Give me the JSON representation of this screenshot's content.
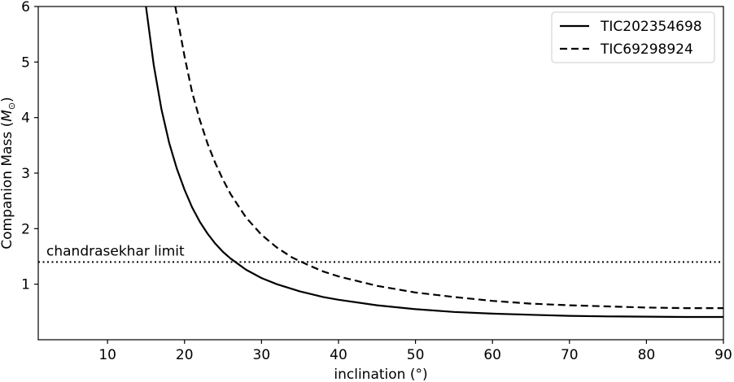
{
  "chart_data": {
    "type": "line",
    "xlabel": "inclination (°)",
    "ylabel": "Companion Mass (",
    "ylabel_symbol": "M",
    "ylabel_subscript": "⊙",
    "ylabel_close": ")",
    "xlim": [
      1,
      90
    ],
    "ylim": [
      0,
      6
    ],
    "xticks": [
      10,
      20,
      30,
      40,
      50,
      60,
      70,
      80,
      90
    ],
    "yticks": [
      1,
      2,
      3,
      4,
      5,
      6
    ],
    "grid": false,
    "legend_position": "top-right",
    "series": [
      {
        "name": "TIC202354698",
        "style": "solid",
        "color": "#000000",
        "x": [
          15,
          16,
          17,
          18,
          19,
          20,
          21,
          22,
          23,
          24,
          25,
          26,
          28,
          30,
          32,
          35,
          38,
          40,
          45,
          50,
          55,
          60,
          65,
          70,
          75,
          80,
          85,
          90
        ],
        "y": [
          6.0,
          4.95,
          4.15,
          3.55,
          3.08,
          2.7,
          2.38,
          2.12,
          1.91,
          1.73,
          1.58,
          1.46,
          1.26,
          1.11,
          1.0,
          0.87,
          0.77,
          0.72,
          0.62,
          0.55,
          0.5,
          0.47,
          0.45,
          0.43,
          0.42,
          0.415,
          0.41,
          0.41
        ]
      },
      {
        "name": "TIC69298924",
        "style": "dashed",
        "color": "#000000",
        "x": [
          18.8,
          20,
          21,
          22,
          23,
          24,
          25,
          26,
          28,
          30,
          32,
          34,
          36,
          38,
          40,
          45,
          50,
          55,
          60,
          65,
          70,
          75,
          80,
          85,
          90
        ],
        "y": [
          6.0,
          5.1,
          4.45,
          3.95,
          3.53,
          3.18,
          2.88,
          2.62,
          2.2,
          1.89,
          1.66,
          1.48,
          1.35,
          1.23,
          1.14,
          0.97,
          0.85,
          0.77,
          0.7,
          0.65,
          0.62,
          0.6,
          0.58,
          0.57,
          0.57
        ]
      }
    ],
    "reference_line": {
      "y": 1.4,
      "style": "dotted",
      "label": "chandrasekhar limit"
    }
  }
}
